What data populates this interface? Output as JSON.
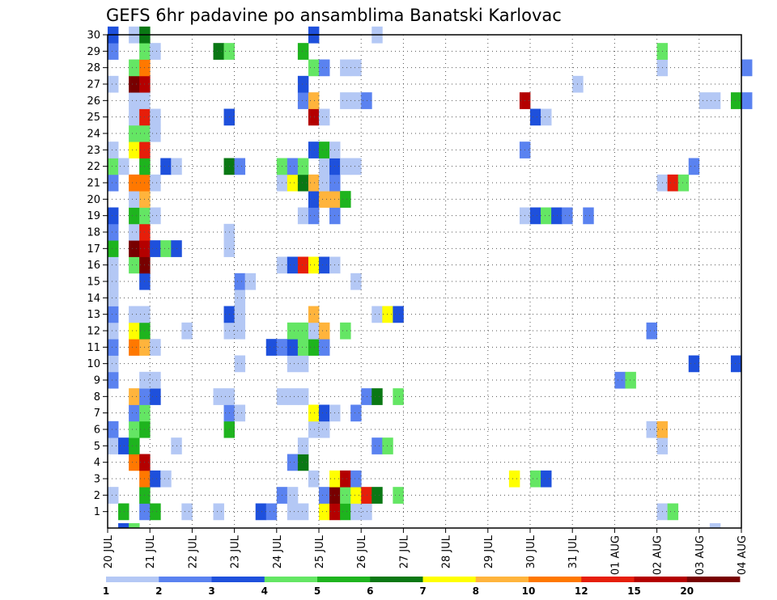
{
  "chart_data": {
    "type": "heatmap",
    "title": "GEFS 6hr padavine po ansamblima Banatski Karlovac",
    "x_ticks": [
      "20 JUL",
      "21 JUL",
      "22 JUL",
      "23 JUL",
      "24 JUL",
      "25 JUL",
      "26 JUL",
      "27 JUL",
      "28 JUL",
      "29 JUL",
      "30 JUL",
      "31 JUL",
      "01 AUG",
      "02 AUG",
      "03 AUG",
      "04 AUG"
    ],
    "x_range_days": [
      0,
      15
    ],
    "time_step_hours": 6,
    "y_ticks": [
      "1",
      "2",
      "3",
      "4",
      "5",
      "6",
      "7",
      "8",
      "9",
      "10",
      "11",
      "12",
      "13",
      "14",
      "15",
      "16",
      "17",
      "18",
      "19",
      "20",
      "21",
      "22",
      "23",
      "24",
      "25",
      "26",
      "27",
      "28",
      "29",
      "30"
    ],
    "y_range": [
      0,
      30
    ],
    "grid": true,
    "colorbar": {
      "labels": [
        "1",
        "2",
        "3",
        "4",
        "5",
        "6",
        "7",
        "8",
        "10",
        "12",
        "15",
        "20"
      ],
      "colors": [
        "#b4c8f5",
        "#5a82f0",
        "#1e50dc",
        "#64e664",
        "#1eb41e",
        "#0a7814",
        "#ffff00",
        "#ffb43c",
        "#ff7800",
        "#e61e0a",
        "#b40000",
        "#780000"
      ]
    },
    "cells": [
      [
        1,
        [
          [
            1,
            4
          ],
          [
            3,
            1
          ],
          [
            4,
            4
          ],
          [
            7,
            0
          ],
          [
            10,
            0
          ],
          [
            14,
            2
          ],
          [
            15,
            1
          ],
          [
            17,
            0
          ],
          [
            18,
            0
          ],
          [
            20,
            6
          ],
          [
            21,
            10
          ],
          [
            22,
            4
          ],
          [
            23,
            0
          ],
          [
            24,
            0
          ],
          [
            52,
            0
          ],
          [
            53,
            3
          ]
        ]
      ],
      [
        2,
        [
          [
            0,
            0
          ],
          [
            3,
            4
          ],
          [
            16,
            1
          ],
          [
            17,
            0
          ],
          [
            20,
            1
          ],
          [
            21,
            11
          ],
          [
            22,
            3
          ],
          [
            23,
            6
          ],
          [
            24,
            9
          ],
          [
            25,
            5
          ],
          [
            27,
            3
          ]
        ]
      ],
      [
        3,
        [
          [
            3,
            8
          ],
          [
            4,
            2
          ],
          [
            5,
            0
          ],
          [
            19,
            0
          ],
          [
            21,
            6
          ],
          [
            22,
            10
          ],
          [
            23,
            1
          ],
          [
            38,
            6
          ],
          [
            40,
            3
          ],
          [
            41,
            2
          ]
        ]
      ],
      [
        4,
        [
          [
            2,
            8
          ],
          [
            3,
            10
          ],
          [
            17,
            1
          ],
          [
            18,
            5
          ]
        ]
      ],
      [
        5,
        [
          [
            0,
            0
          ],
          [
            1,
            2
          ],
          [
            2,
            4
          ],
          [
            6,
            0
          ],
          [
            18,
            0
          ],
          [
            25,
            1
          ],
          [
            26,
            3
          ],
          [
            52,
            0
          ]
        ]
      ],
      [
        6,
        [
          [
            0,
            1
          ],
          [
            2,
            3
          ],
          [
            3,
            4
          ],
          [
            11,
            4
          ],
          [
            19,
            0
          ],
          [
            20,
            0
          ],
          [
            51,
            0
          ],
          [
            52,
            7
          ]
        ]
      ],
      [
        7,
        [
          [
            2,
            1
          ],
          [
            3,
            3
          ],
          [
            11,
            1
          ],
          [
            12,
            0
          ],
          [
            19,
            6
          ],
          [
            20,
            2
          ],
          [
            21,
            0
          ],
          [
            23,
            1
          ]
        ]
      ],
      [
        8,
        [
          [
            2,
            7
          ],
          [
            3,
            1
          ],
          [
            4,
            2
          ],
          [
            10,
            0
          ],
          [
            11,
            0
          ],
          [
            16,
            0
          ],
          [
            17,
            0
          ],
          [
            18,
            0
          ],
          [
            24,
            1
          ],
          [
            25,
            5
          ],
          [
            27,
            3
          ]
        ]
      ],
      [
        9,
        [
          [
            0,
            1
          ],
          [
            3,
            0
          ],
          [
            4,
            0
          ],
          [
            48,
            1
          ],
          [
            49,
            3
          ]
        ]
      ],
      [
        10,
        [
          [
            0,
            0
          ],
          [
            12,
            0
          ],
          [
            17,
            0
          ],
          [
            18,
            0
          ],
          [
            55,
            2
          ],
          [
            59,
            2
          ]
        ]
      ],
      [
        11,
        [
          [
            0,
            1
          ],
          [
            2,
            8
          ],
          [
            3,
            7
          ],
          [
            4,
            0
          ],
          [
            15,
            2
          ],
          [
            16,
            1
          ],
          [
            17,
            2
          ],
          [
            18,
            3
          ],
          [
            19,
            4
          ],
          [
            20,
            1
          ]
        ]
      ],
      [
        12,
        [
          [
            0,
            0
          ],
          [
            2,
            6
          ],
          [
            3,
            4
          ],
          [
            7,
            0
          ],
          [
            11,
            0
          ],
          [
            12,
            0
          ],
          [
            17,
            3
          ],
          [
            18,
            3
          ],
          [
            19,
            0
          ],
          [
            20,
            7
          ],
          [
            22,
            3
          ],
          [
            51,
            1
          ]
        ]
      ],
      [
        13,
        [
          [
            0,
            1
          ],
          [
            2,
            0
          ],
          [
            3,
            0
          ],
          [
            11,
            2
          ],
          [
            12,
            0
          ],
          [
            19,
            7
          ],
          [
            25,
            0
          ],
          [
            26,
            6
          ],
          [
            27,
            2
          ]
        ]
      ],
      [
        14,
        [
          [
            0,
            0
          ],
          [
            12,
            0
          ]
        ]
      ],
      [
        15,
        [
          [
            0,
            0
          ],
          [
            3,
            2
          ],
          [
            12,
            1
          ],
          [
            13,
            0
          ],
          [
            23,
            0
          ]
        ]
      ],
      [
        16,
        [
          [
            0,
            0
          ],
          [
            2,
            3
          ],
          [
            3,
            11
          ],
          [
            16,
            0
          ],
          [
            17,
            2
          ],
          [
            18,
            9
          ],
          [
            19,
            6
          ],
          [
            20,
            2
          ],
          [
            21,
            0
          ]
        ]
      ],
      [
        17,
        [
          [
            0,
            4
          ],
          [
            2,
            11
          ],
          [
            3,
            10
          ],
          [
            4,
            2
          ],
          [
            5,
            3
          ],
          [
            6,
            2
          ],
          [
            11,
            0
          ]
        ]
      ],
      [
        18,
        [
          [
            0,
            1
          ],
          [
            2,
            0
          ],
          [
            3,
            9
          ],
          [
            11,
            0
          ]
        ]
      ],
      [
        19,
        [
          [
            0,
            2
          ],
          [
            2,
            4
          ],
          [
            3,
            3
          ],
          [
            4,
            0
          ],
          [
            18,
            0
          ],
          [
            19,
            1
          ],
          [
            21,
            1
          ],
          [
            39,
            0
          ],
          [
            40,
            2
          ],
          [
            41,
            3
          ],
          [
            42,
            2
          ],
          [
            43,
            1
          ],
          [
            45,
            1
          ]
        ]
      ],
      [
        20,
        [
          [
            2,
            0
          ],
          [
            3,
            7
          ],
          [
            19,
            2
          ],
          [
            20,
            7
          ],
          [
            21,
            7
          ],
          [
            22,
            4
          ]
        ]
      ],
      [
        21,
        [
          [
            0,
            1
          ],
          [
            2,
            8
          ],
          [
            3,
            8
          ],
          [
            4,
            0
          ],
          [
            16,
            0
          ],
          [
            17,
            6
          ],
          [
            18,
            5
          ],
          [
            19,
            7
          ],
          [
            20,
            0
          ],
          [
            21,
            1
          ],
          [
            52,
            0
          ],
          [
            53,
            9
          ],
          [
            54,
            3
          ]
        ]
      ],
      [
        22,
        [
          [
            0,
            3
          ],
          [
            1,
            0
          ],
          [
            3,
            4
          ],
          [
            5,
            2
          ],
          [
            6,
            0
          ],
          [
            11,
            5
          ],
          [
            12,
            1
          ],
          [
            16,
            3
          ],
          [
            17,
            1
          ],
          [
            18,
            3
          ],
          [
            20,
            0
          ],
          [
            21,
            2
          ],
          [
            22,
            0
          ],
          [
            23,
            0
          ],
          [
            55,
            1
          ]
        ]
      ],
      [
        23,
        [
          [
            0,
            0
          ],
          [
            2,
            6
          ],
          [
            3,
            9
          ],
          [
            19,
            2
          ],
          [
            20,
            4
          ],
          [
            21,
            0
          ],
          [
            39,
            1
          ]
        ]
      ],
      [
        24,
        [
          [
            2,
            3
          ],
          [
            3,
            3
          ],
          [
            4,
            0
          ]
        ]
      ],
      [
        25,
        [
          [
            2,
            0
          ],
          [
            3,
            9
          ],
          [
            4,
            0
          ],
          [
            11,
            2
          ],
          [
            19,
            10
          ],
          [
            20,
            0
          ],
          [
            40,
            2
          ],
          [
            41,
            0
          ]
        ]
      ],
      [
        26,
        [
          [
            2,
            0
          ],
          [
            3,
            0
          ],
          [
            18,
            1
          ],
          [
            19,
            7
          ],
          [
            22,
            0
          ],
          [
            23,
            0
          ],
          [
            24,
            1
          ],
          [
            39,
            10
          ],
          [
            56,
            0
          ],
          [
            57,
            0
          ],
          [
            59,
            4
          ],
          [
            60,
            1
          ]
        ]
      ],
      [
        27,
        [
          [
            0,
            0
          ],
          [
            2,
            11
          ],
          [
            3,
            10
          ],
          [
            18,
            2
          ],
          [
            44,
            0
          ]
        ]
      ],
      [
        28,
        [
          [
            2,
            3
          ],
          [
            3,
            8
          ],
          [
            19,
            3
          ],
          [
            20,
            1
          ],
          [
            22,
            0
          ],
          [
            23,
            0
          ],
          [
            52,
            0
          ],
          [
            60,
            1
          ]
        ]
      ],
      [
        29,
        [
          [
            0,
            1
          ],
          [
            3,
            3
          ],
          [
            4,
            0
          ],
          [
            10,
            5
          ],
          [
            11,
            3
          ],
          [
            18,
            4
          ],
          [
            52,
            3
          ]
        ]
      ],
      [
        30,
        [
          [
            0,
            2
          ],
          [
            2,
            0
          ],
          [
            3,
            5
          ],
          [
            19,
            2
          ],
          [
            25,
            0
          ]
        ]
      ]
    ],
    "bottom_strip": [
      [
        1,
        2
      ],
      [
        2,
        3
      ],
      [
        57,
        0
      ]
    ]
  }
}
